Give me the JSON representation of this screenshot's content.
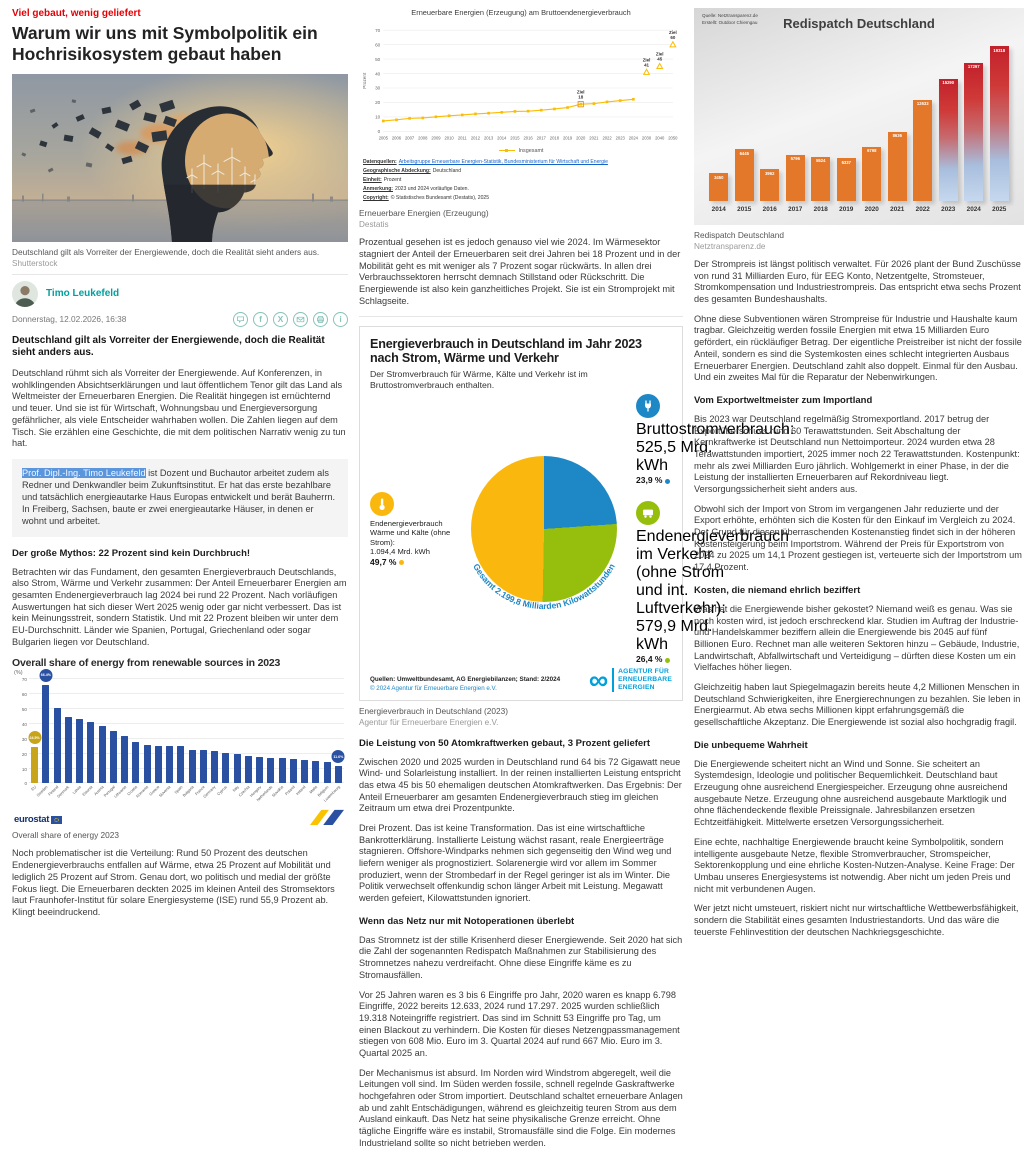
{
  "page": {
    "kicker": "Viel gebaut, wenig geliefert",
    "headline": "Warum wir uns mit Symbolpolitik ein Hochrisikosystem gebaut haben"
  },
  "hero": {
    "caption": "Deutschland gilt als Vorreiter der Energiewende, doch die Realität sieht anders aus.",
    "credit": "Shutterstock"
  },
  "author": {
    "name": "Timo Leukefeld",
    "date": "Donnerstag, 12.02.2026, 16:38"
  },
  "left": {
    "lede": "Deutschland gilt als Vorreiter der Energiewende, doch die Realität sieht anders aus.",
    "p1": "Deutschland rühmt sich als Vorreiter der Energiewende. Auf Konferenzen, in wohlklingenden Absichtserklärungen und laut öffentlichem Tenor gilt das Land als Weltmeister der Erneuerbaren Energien. Die Realität hingegen ist ernüchternd und teuer. Und sie ist für Wirtschaft, Wohnungsbau und Energieversorgung gefährlicher, als viele Entscheider wahrhaben wollen. Die Zahlen liegen auf dem Tisch. Sie erzählen eine Geschichte, die mit dem politischen Narrativ wenig zu tun hat.",
    "bio_name": "Prof. Dipl.-Ing. Timo Leukefeld",
    "bio_text": " ist Dozent und Buchautor arbeitet zudem als Redner und Denkwandler beim Zukunftsinstitut. Er hat das erste bezahlbare und tatsächlich energieautarke Haus Europas entwickelt und berät Bauherrn. In Freiberg, Sachsen, baute er zwei energieautarke Häuser, in denen er wohnt und arbeitet.",
    "h_mythos": "Der große Mythos: 22 Prozent sind kein Durchbruch!",
    "p2": "Betrachten wir das Fundament, den gesamten Energieverbrauch Deutschlands, also Strom, Wärme und Verkehr zusammen: Der Anteil Erneuerbarer Energien am gesamten Endenergieverbrauch lag 2024 bei rund 22 Prozent. Nach vorläufigen Auswertungen hat sich dieser Wert 2025 wenig oder gar nicht verbessert. Das ist kein Meinungsstreit, sondern Statistik. Und mit 22 Prozent bleiben wir unter dem EU-Durchschnitt. Länder wie Spanien, Portugal, Griechenland oder sogar Bulgarien liegen vor Deutschland.",
    "chart_caption": "Overall share of energy 2023",
    "p3": "Noch problematischer ist die Verteilung: Rund 50 Prozent des deutschen Endenergieverbrauchs entfallen auf Wärme, etwa 25 Prozent auf Mobilität und lediglich 25 Prozent auf Strom. Genau dort, wo politisch und medial der größte Fokus liegt. Die Erneuerbaren deckten 2025 im kleinen Anteil des Stromsektors laut Fraunhofer-Institut für solare Energiesysteme (ISE) rund 55,9 Prozent ab. Klingt beeindruckend."
  },
  "middle": {
    "fig1_caption": "Erneuerbare Energien (Erzeugung)",
    "fig1_credit": "Destatis",
    "p1": "Prozentual gesehen ist es jedoch genauso viel wie 2024. Im Wärmesektor stagniert der Anteil der Erneuerbaren seit drei Jahren bei 18 Prozent und in der Mobilität geht es mit weniger als 7 Prozent sogar rückwärts. In allen drei Verbrauchssektoren herrscht demnach Stillstand oder Rückschritt. Die Energiewende ist also kein ganzheitliches Projekt. Sie ist ein Stromprojekt mit Schlagseite.",
    "fig2_caption": "Energieverbrauch in Deutschland (2023)",
    "fig2_credit": "Agentur für Erneuerbare Energien e.V.",
    "h_akw": "Die Leistung von 50 Atomkraftwerken gebaut, 3 Prozent geliefert",
    "p2": "Zwischen 2020 und 2025 wurden in Deutschland rund 64 bis 72 Gigawatt neue Wind- und Solarleistung installiert. In der reinen installierten Leistung entspricht das etwa 45 bis 50 ehemaligen deutschen Atomkraftwerken. Das Ergebnis: Der Anteil Erneuerbarer am gesamten Endenergieverbrauch stieg im gleichen Zeitraum um etwa drei Prozentpunkte.",
    "p3": "Drei Prozent. Das ist keine Transformation. Das ist eine wirtschaftliche Bankrotterklärung. Installierte Leistung wächst rasant, reale Energieerträge stagnieren. Offshore-Windparks nehmen sich gegenseitig den Wind weg und liefern weniger als prognostiziert. Solarenergie wird vor allem im Sommer produziert, wenn der Strombedarf in der Regel geringer ist als im Winter. Die Politik verwechselt offenkundig schon länger Arbeit mit Leistung. Megawatt werden gefeiert, Kilowattstunden ignoriert.",
    "h_netz": "Wenn das Netz nur mit Notoperationen überlebt",
    "p4": "Das Stromnetz ist der stille Krisenherd dieser Energiewende. Seit 2020 hat sich die Zahl der sogenannten Redispatch Maßnahmen zur Stabilisierung des Stromnetzes nahezu verdreifacht. Ohne diese Eingriffe käme es zu Stromausfällen.",
    "p5": "Vor 25 Jahren waren es 3 bis 6 Eingriffe pro Jahr, 2020 waren es knapp 6.798 Eingriffe, 2022 bereits 12.633, 2024 rund 17.297. 2025 wurden schließlich 19.318 Noteingriffe registriert. Das sind im Schnitt 53 Eingriffe pro Tag, um einen Blackout zu verhindern. Die Kosten für dieses Netzengpassmanagement stiegen von 608 Mio. Euro im 3. Quartal 2024 auf rund 667 Mio. Euro im 3. Quartal 2025 an.",
    "p6": "Der Mechanismus ist absurd. Im Norden wird Windstrom abgeregelt, weil die Leitungen voll sind. Im Süden werden fossile, schnell regelnde Gaskraftwerke hochgefahren oder Strom importiert. Deutschland schaltet erneuerbare Anlagen ab und zahlt Entschädigungen, während es gleichzeitig teuren Strom aus dem Ausland einkauft. Das Netz hat seine physikalische Grenze erreicht. Ohne tägliche Eingriffe wäre es instabil, Stromausfälle sind die Folge. Ein modernes Industrieland sollte so nicht betrieben werden."
  },
  "right": {
    "fig_caption": "Redispatch Deutschland",
    "fig_credit": "Netztransparenz.de",
    "p1": "Der Strompreis ist längst politisch verwaltet. Für 2026 plant der Bund Zuschüsse von rund 31 Milliarden Euro, für EEG Konto, Netzentgelte, Stromsteuer, Stromkompensation und Industriestrompreis. Das entspricht etwa sechs Prozent des gesamten Bundeshaushalts.",
    "p2": "Ohne diese Subventionen wären Strompreise für Industrie und Haushalte kaum tragbar. Gleichzeitig werden fossile Energien mit etwa 15 Milliarden Euro gefördert, ein rückläufiger Betrag. Der eigentliche Preistreiber ist nicht der fossile Anteil, sondern es sind die Systemkosten eines schlecht integrierten Ausbaus Erneuerbarer Energien. Deutschland zahlt also doppelt. Einmal für den Ausbau. Und ein zweites Mal für die Reparatur der Nebenwirkungen.",
    "h_export": "Vom Exportweltmeister zum Importland",
    "p3": "Bis 2023 war Deutschland regelmäßig Stromexportland. 2017 betrug der Exportüberschuss rund 60 Terawattstunden. Seit Abschaltung der Kernkraftwerke ist Deutschland nun Nettoimporteur. 2024 wurden etwa 28 Terawattstunden importiert, 2025 immer noch 22 Terawattstunden. Kostenpunkt: mehr als zwei Milliarden Euro jährlich. Wohlgemerkt in einer Phase, in der die Leistung der installierten Erneuerbaren auf Rekordniveau liegt. Versorgungssicherheit sieht anders aus.",
    "p4": "Obwohl sich der Import von Strom im vergangenen Jahr reduzierte und der Export erhöhte, erhöhten sich die Kosten für den Einkauf im Vergleich zu 2024. Der Grund für diesen überraschenden Kostenanstieg findet sich in der höheren Kostensteigerung beim Importstrom. Während der Preis für Exportstrom von 2024 zu 2025 um 14,1 Prozent gestiegen ist, verteuerte sich der Importstrom um 17,4 Prozent.",
    "h_kosten": "Kosten, die niemand ehrlich beziffert",
    "p5": "Was hat die Energiewende bisher gekostet? Niemand weiß es genau. Was sie noch kosten wird, ist jedoch erschreckend klar. Studien im Auftrag der Industrie- und Handelskammer beziffern allein die Energiewende bis 2045 auf fünf Billionen Euro. Rechnet man alle weiteren Sektoren hinzu – Gebäude, Industrie, Landwirtschaft, Abfallwirtschaft und Verteidigung – dürften diese Kosten um ein Vielfaches höher liegen.",
    "p6": "Gleichzeitig haben laut Spiegelmagazin bereits heute 4,2 Millionen Menschen in Deutschland Schwierigkeiten, ihre Energierechnungen zu bezahlen. Sie leben in Energiearmut. Ab etwa sechs Millionen kippt erfahrungsgemäß die gesellschaftliche Akzeptanz. Die Energiewende ist sozial also hochgradig fragil.",
    "h_wahrheit": "Die unbequeme Wahrheit",
    "p7": "Die Energiewende scheitert nicht an Wind und Sonne. Sie scheitert an Systemdesign, Ideologie und politischer Bequemlichkeit. Deutschland baut Erzeugung ohne ausreichend Energiespeicher. Erzeugung ohne ausreichend ausgebaute Netze. Erzeugung ohne ausreichend ausgebaute Marktlogik und ohne flächendeckende flexible Preissignale. Jahresbilanzen ersetzen Echtzeitfähigkeit. Mittelwerte ersetzen Versorgungssicherheit.",
    "p8": "Eine echte, nachhaltige Energiewende braucht keine Symbolpolitik, sondern intelligente ausgebaute Netze, flexible Stromverbraucher, Stromspeicher, Sektorenkopplung und eine ehrliche Kosten-Nutzen-Analyse. Keine Frage: Der Umbau unseres Energiesystems ist notwendig. Aber nicht um jeden Preis und nicht mit verbundenen Augen.",
    "p9": "Wer jetzt nicht umsteuert, riskiert nicht nur wirtschaftliche Wettbewerbsfähigkeit, sondern die Stabilität eines gesamten Industriestandorts. Und das wäre die teuerste Fehlinvestition der deutschen Nachkriegsgeschichte."
  },
  "chart_data": [
    {
      "id": "ee-anteil",
      "type": "line",
      "title": "Erneuerbare Energien (Erzeugung) am Bruttoendenergieverbrauch",
      "ylabel": "Prozent",
      "ylim": [
        0,
        70
      ],
      "yticks": [
        0,
        10,
        20,
        30,
        40,
        50,
        60,
        70
      ],
      "x_ticks": [
        "2005",
        "2006",
        "2007",
        "2008",
        "2009",
        "2010",
        "2011",
        "2012",
        "2013",
        "2014",
        "2015",
        "2016",
        "2017",
        "2018",
        "2019",
        "2020",
        "2021",
        "2022",
        "2023",
        "2024",
        "2030",
        "2040",
        "2050"
      ],
      "series": [
        {
          "name": "Insgesamt",
          "color": "#fbbc04",
          "values": [
            7.2,
            8.0,
            9.0,
            9.3,
            10.1,
            10.8,
            11.4,
            12.1,
            12.6,
            13.2,
            13.8,
            14.0,
            14.7,
            15.5,
            16.5,
            18.8,
            19.2,
            20.4,
            21.3,
            22.2
          ]
        }
      ],
      "targets": [
        {
          "tick": 15,
          "label": "Ziel",
          "value_label": "18",
          "y": 18.8,
          "triangle": false
        },
        {
          "tick": 20,
          "label": "Ziel",
          "value_label": "41",
          "y": 41,
          "triangle": true
        },
        {
          "tick": 21,
          "label": "Ziel",
          "value_label": "45",
          "y": 45,
          "triangle": true
        },
        {
          "tick": 22,
          "label": "Ziel",
          "value_label": "60",
          "y": 60,
          "triangle": true
        }
      ],
      "legend": "Insgesamt",
      "meta": [
        {
          "label": "Datenquellen:",
          "value": "Arbeitsgruppe Erneuerbare Energien-Statistik, Bundesministerium für Wirtschaft und Energie",
          "link": true
        },
        {
          "label": "Geographische Abdeckung:",
          "value": "Deutschland"
        },
        {
          "label": "Einheit:",
          "value": "Prozent"
        },
        {
          "label": "Anmerkung:",
          "value": "2023 und 2024 vorläufige Daten."
        },
        {
          "label": "Copyright:",
          "value": "© Statistisches Bundesamt (Destatis), 2025"
        }
      ]
    },
    {
      "id": "eurostat-res",
      "type": "bar",
      "title": "Overall share of energy from renewable sources in 2023",
      "ylabel": "(%)",
      "ylim": [
        0,
        70
      ],
      "yticks": [
        0,
        10,
        20,
        30,
        40,
        50,
        60,
        70
      ],
      "brand": "eurostat",
      "categories": [
        "EU",
        "Sweden",
        "Finland",
        "Denmark",
        "Latvia",
        "Estonia",
        "Austria",
        "Portugal",
        "Lithuania",
        "Croatia",
        "Romania",
        "Greece",
        "Slovenia",
        "Spain",
        "Bulgaria",
        "France",
        "Germany",
        "Cyprus",
        "Italy",
        "Czechia",
        "Hungary",
        "Netherlands",
        "Slovakia",
        "Poland",
        "Ireland",
        "Malta",
        "Belgium",
        "Luxembourg"
      ],
      "values": [
        24.5,
        66.4,
        50.8,
        44.9,
        43.3,
        41.4,
        39.0,
        35.2,
        32.0,
        28.1,
        26.0,
        25.5,
        25.2,
        25.0,
        22.6,
        22.2,
        21.6,
        20.2,
        19.6,
        18.6,
        17.5,
        17.4,
        17.0,
        16.5,
        15.7,
        15.1,
        14.7,
        11.6
      ],
      "highlight_index": 0,
      "bar_color": "#2a50a1",
      "highlight_color": "#c8a41b",
      "callouts": [
        {
          "index": 0,
          "text": "24.5%",
          "color": "#c8a41b"
        },
        {
          "index": 1,
          "text": "66.4%",
          "color": "#2a50a1"
        },
        {
          "index": 27,
          "text": "11.6%",
          "color": "#2a50a1"
        }
      ]
    },
    {
      "id": "redispatch",
      "type": "bar",
      "title": "Redispatch Deutschland",
      "source_line1": "Quelle: Netztransparenz.de",
      "source_line2": "Erstellt: Outdoor Chiemgau",
      "ylim": [
        0,
        20500
      ],
      "categories": [
        "2014",
        "2015",
        "2016",
        "2017",
        "2018",
        "2019",
        "2020",
        "2021",
        "2022",
        "2023",
        "2024",
        "2025"
      ],
      "values": [
        3450,
        6445,
        3962,
        5796,
        5524,
        5337,
        6798,
        8636,
        12633,
        15290,
        17297,
        19318
      ],
      "show_values": true,
      "gradient_from": 9,
      "bar_color": "#e4782a"
    },
    {
      "id": "energie-pie",
      "type": "pie",
      "title": "Energieverbrauch in Deutschland im Jahr 2023 nach Strom, Wärme und Verkehr",
      "subtitle": "Der Stromverbrauch für Wärme, Kälte und Verkehr ist im Bruttostromverbrauch enthalten.",
      "total_label": "Gesamt 2.199,8 Milliarden Kilowattstunden",
      "slices": [
        {
          "name": "Bruttostromverbrauch:",
          "amount": "525,5 Mrd. kWh",
          "pct_label": "23,9 %",
          "value": 23.9,
          "color": "#1e87c6",
          "icon": "plug"
        },
        {
          "name": "Endenergieverbrauch im Verkehr (ohne Strom und int. Luftverkehr):",
          "amount": "579,9 Mrd. kWh",
          "pct_label": "26,4 %",
          "value": 26.4,
          "color": "#96bf0d",
          "icon": "transport"
        },
        {
          "name": "Endenergieverbrauch Wärme und Kälte (ohne Strom):",
          "amount": "1.094,4 Mrd. kWh",
          "pct_label": "49,7 %",
          "value": 49.7,
          "color": "#fab80f",
          "icon": "heat"
        }
      ],
      "sources": "Quellen: Umweltbundesamt, AG Energiebilanzen; Stand: 2/2024",
      "copyright": "© 2024 Agentur für Erneuerbare Energien e.V.",
      "logo_lines": [
        "AGENTUR FÜR",
        "ERNEUERBARE",
        "ENERGIEN"
      ]
    }
  ]
}
